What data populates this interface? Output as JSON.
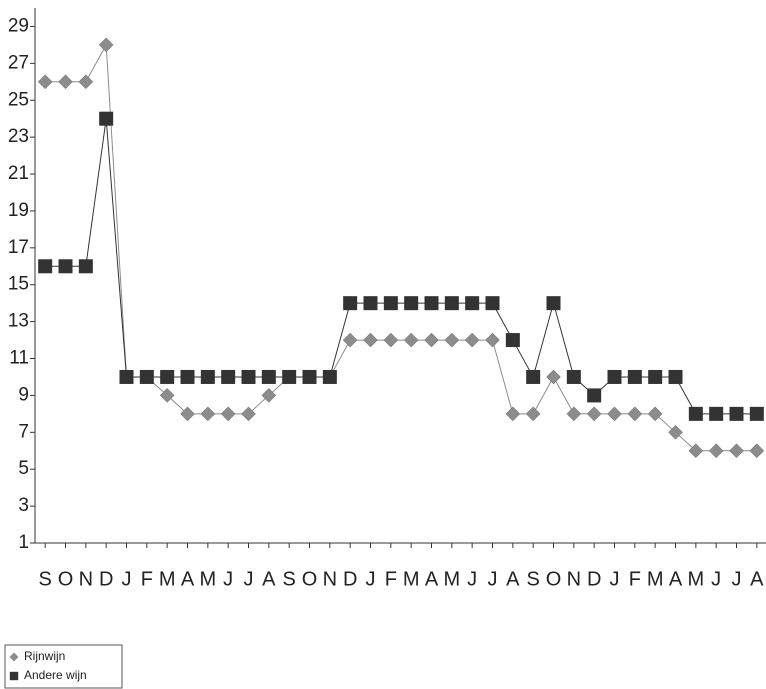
{
  "chart_data": {
    "type": "line",
    "categories": [
      "S",
      "O",
      "N",
      "D",
      "J",
      "F",
      "M",
      "A",
      "M",
      "J",
      "J",
      "A",
      "S",
      "O",
      "N",
      "D",
      "J",
      "F",
      "M",
      "A",
      "M",
      "J",
      "J",
      "A",
      "S",
      "O",
      "N",
      "D",
      "J",
      "F",
      "M",
      "A",
      "M",
      "J",
      "J",
      "A"
    ],
    "series": [
      {
        "name": "Rijnwijn",
        "color": "#8c8c8c",
        "marker": "diamond",
        "values": [
          26,
          26,
          26,
          28,
          10,
          10,
          9,
          8,
          8,
          8,
          8,
          9,
          10,
          10,
          10,
          12,
          12,
          12,
          12,
          12,
          12,
          12,
          12,
          8,
          8,
          10,
          8,
          8,
          8,
          8,
          8,
          7,
          6,
          6,
          6,
          6
        ]
      },
      {
        "name": "Andere wijn",
        "color": "#333333",
        "marker": "square",
        "values": [
          16,
          16,
          16,
          24,
          10,
          10,
          10,
          10,
          10,
          10,
          10,
          10,
          10,
          10,
          10,
          14,
          14,
          14,
          14,
          14,
          14,
          14,
          14,
          12,
          10,
          14,
          10,
          9,
          10,
          10,
          10,
          10,
          8,
          8,
          8,
          8
        ]
      }
    ],
    "ylim": [
      1,
      30
    ],
    "yticks": [
      1,
      3,
      5,
      7,
      9,
      11,
      13,
      15,
      17,
      19,
      21,
      23,
      25,
      27,
      29
    ],
    "grid": false
  }
}
